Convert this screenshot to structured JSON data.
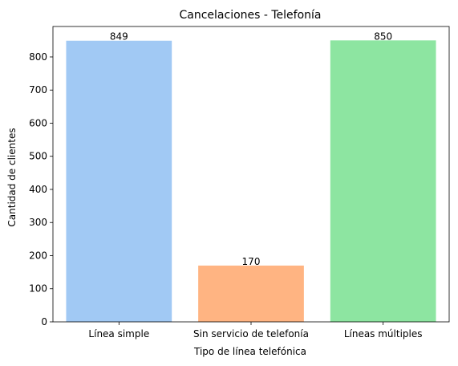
{
  "chart_data": {
    "type": "bar",
    "title": "Cancelaciones - Telefonía",
    "xlabel": "Tipo de línea telefónica",
    "ylabel": "Cantidad de clientes",
    "categories": [
      "Línea simple",
      "Sin servicio de telefonía",
      "Líneas múltiples"
    ],
    "values": [
      849,
      170,
      850
    ],
    "data_labels": [
      "849",
      "170",
      "850"
    ],
    "colors": [
      "#a1c9f4",
      "#ffb482",
      "#8de5a1"
    ],
    "ylim": [
      0,
      892
    ],
    "yticks": [
      0,
      100,
      200,
      300,
      400,
      500,
      600,
      700,
      800
    ],
    "grid": false,
    "legend": "none"
  }
}
